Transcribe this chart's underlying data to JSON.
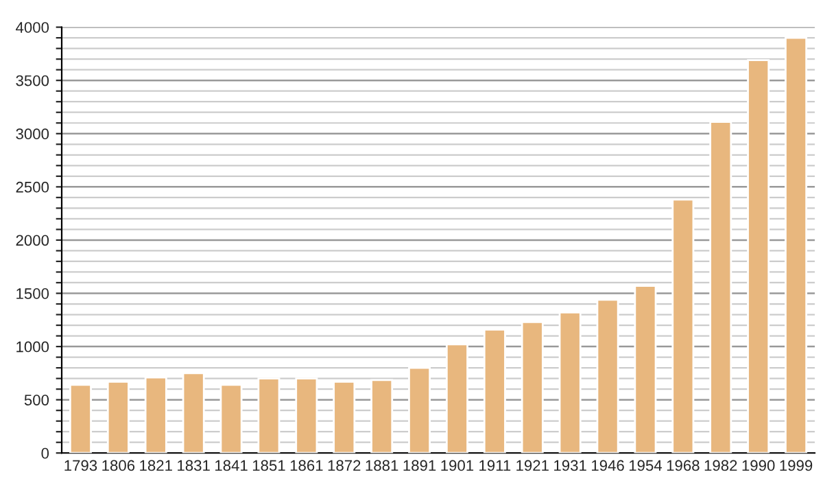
{
  "chart_data": {
    "type": "bar",
    "categories": [
      "1793",
      "1806",
      "1821",
      "1831",
      "1841",
      "1851",
      "1861",
      "1872",
      "1881",
      "1891",
      "1901",
      "1911",
      "1921",
      "1931",
      "1946",
      "1954",
      "1968",
      "1982",
      "1990",
      "1999"
    ],
    "values": [
      640,
      670,
      710,
      750,
      640,
      700,
      700,
      670,
      685,
      800,
      1020,
      1160,
      1230,
      1320,
      1440,
      1570,
      2380,
      3110,
      3690,
      3900
    ],
    "color": "#e8b77e",
    "ylim": [
      0,
      4000
    ],
    "yticks": [
      0,
      {
        "value": 100,
        "label": null
      },
      {
        "value": 200,
        "label": null
      },
      {
        "value": 300,
        "label": null
      },
      {
        "value": 400,
        "label": null
      },
      500,
      {
        "value": 600,
        "label": null
      },
      {
        "value": 700,
        "label": null
      },
      {
        "value": 800,
        "label": null
      },
      {
        "value": 900,
        "label": null
      },
      1000,
      {
        "value": 1100,
        "label": null
      },
      {
        "value": 1200,
        "label": null
      },
      {
        "value": 1300,
        "label": null
      },
      {
        "value": 1400,
        "label": null
      },
      1500,
      {
        "value": 1600,
        "label": null
      },
      {
        "value": 1700,
        "label": null
      },
      {
        "value": 1800,
        "label": null
      },
      {
        "value": 1900,
        "label": null
      },
      2000,
      {
        "value": 2100,
        "label": null
      },
      {
        "value": 2200,
        "label": null
      },
      {
        "value": 2300,
        "label": null
      },
      {
        "value": 2400,
        "label": null
      },
      2500,
      {
        "value": 2600,
        "label": null
      },
      {
        "value": 2700,
        "label": null
      },
      {
        "value": 2800,
        "label": null
      },
      {
        "value": 2900,
        "label": null
      },
      3000,
      {
        "value": 3100,
        "label": null
      },
      {
        "value": 3200,
        "label": null
      },
      {
        "value": 3300,
        "label": null
      },
      {
        "value": 3400,
        "label": null
      },
      3500,
      {
        "value": 3600,
        "label": null
      },
      {
        "value": 3700,
        "label": null
      },
      {
        "value": 3800,
        "label": null
      },
      {
        "value": 3900,
        "label": null
      },
      4000
    ],
    "grid": "y",
    "legend": false
  }
}
